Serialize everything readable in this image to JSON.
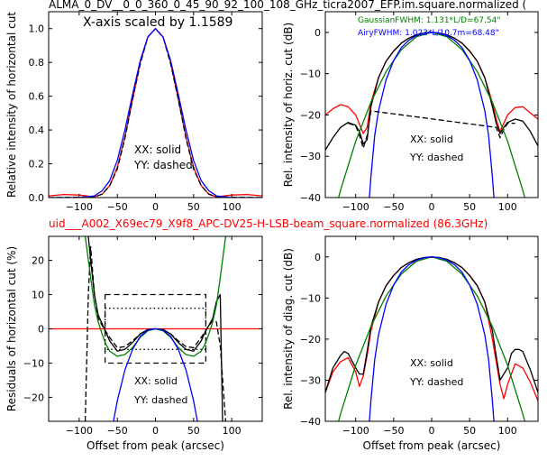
{
  "titles": {
    "top": "ALMA_0_DV__0_0_360_0_45_90_92_100_108_GHz_ticra2007_EFP.im.square.normalized (",
    "middle": "uid___A002_X69ec79_X9f8_APC-DV25-H-LSB-beam_square.normalized (86.3GHz)",
    "middle_color": "#ff0000"
  },
  "colors": {
    "black": "#000000",
    "red": "#ff0000",
    "green": "#008000",
    "blue": "#0000ff"
  },
  "chart_data": [
    {
      "type": "line",
      "panel": "top-left",
      "ylabel": "Relative intensity of horizontal cut",
      "xlabel": "",
      "xlim": [
        -140,
        140
      ],
      "ylim": [
        0,
        1.1
      ],
      "xticks": [
        -100,
        -50,
        0,
        50,
        100
      ],
      "yticks": [
        0.0,
        0.2,
        0.4,
        0.6,
        0.8,
        1.0
      ],
      "xtick_labels": [
        "−100",
        "−50",
        "0",
        "50",
        "100"
      ],
      "ytick_labels": [
        "0.0",
        "0.2",
        "0.4",
        "0.6",
        "0.8",
        "1.0"
      ],
      "annotations": [
        "X-axis scaled by 1.1589",
        "XX: solid",
        "YY: dashed"
      ],
      "series": [
        {
          "style": "red-solid",
          "x": [
            -140,
            -120,
            -100,
            -90,
            -80,
            -70,
            -60,
            -50,
            -40,
            -30,
            -20,
            -10,
            0,
            10,
            20,
            30,
            40,
            50,
            60,
            70,
            80,
            90,
            100,
            120,
            140
          ],
          "y": [
            0.01,
            0.018,
            0.015,
            0.01,
            0.005,
            0.02,
            0.07,
            0.18,
            0.36,
            0.58,
            0.8,
            0.95,
            1.0,
            0.95,
            0.8,
            0.58,
            0.36,
            0.18,
            0.07,
            0.02,
            0.005,
            0.01,
            0.015,
            0.018,
            0.01
          ]
        },
        {
          "style": "black-dashed",
          "x": [
            -140,
            -100,
            -80,
            -70,
            -60,
            -50,
            -40,
            -30,
            -20,
            -10,
            0,
            10,
            20,
            30,
            40,
            50,
            60,
            70,
            80,
            100,
            140
          ],
          "y": [
            0.0,
            0.002,
            0.005,
            0.02,
            0.07,
            0.17,
            0.35,
            0.58,
            0.79,
            0.95,
            1.0,
            0.95,
            0.79,
            0.58,
            0.35,
            0.17,
            0.07,
            0.02,
            0.005,
            0.002,
            0.0
          ]
        },
        {
          "style": "blue-solid",
          "x": [
            -140,
            -100,
            -80,
            -70,
            -60,
            -50,
            -40,
            -30,
            -20,
            -10,
            0,
            10,
            20,
            30,
            40,
            50,
            60,
            70,
            80,
            100,
            140
          ],
          "y": [
            0.0,
            0.0,
            0.01,
            0.04,
            0.1,
            0.22,
            0.4,
            0.61,
            0.81,
            0.95,
            1.0,
            0.95,
            0.81,
            0.61,
            0.4,
            0.22,
            0.1,
            0.04,
            0.01,
            0.0,
            0.0
          ]
        }
      ]
    },
    {
      "type": "line",
      "panel": "top-right",
      "ylabel": "Rel. intensity of horiz. cut (dB)",
      "xlabel": "",
      "xlim": [
        -140,
        140
      ],
      "ylim": [
        -40,
        5
      ],
      "xticks": [
        -100,
        -50,
        0,
        50,
        100
      ],
      "yticks": [
        -40,
        -30,
        -20,
        -10,
        0
      ],
      "xtick_labels": [
        "−100",
        "−50",
        "0",
        "50",
        "100"
      ],
      "ytick_labels": [
        "−40",
        "−30",
        "−20",
        "−10",
        "0"
      ],
      "annotations": [
        "XX: solid",
        "YY: dashed"
      ],
      "legend": [
        {
          "label": "GaussianFWHM: 1.131*L/D=67.54\"",
          "color": "#008000"
        },
        {
          "label": "AiryFWHM: 1.023*L/10.7m=68.48\"",
          "color": "#0000ff"
        }
      ],
      "series": [
        {
          "style": "red-solid",
          "x": [
            -140,
            -130,
            -120,
            -110,
            -100,
            -90,
            -85,
            -80,
            -70,
            -60,
            -50,
            -40,
            -30,
            -20,
            -10,
            0,
            10,
            20,
            30,
            40,
            50,
            60,
            70,
            80,
            85,
            90,
            100,
            110,
            120,
            130,
            140
          ],
          "y": [
            -20,
            -18.5,
            -17.5,
            -18,
            -20,
            -24.5,
            -23,
            -17,
            -11,
            -7,
            -4.5,
            -2.6,
            -1.4,
            -0.6,
            -0.15,
            0,
            -0.15,
            -0.6,
            -1.4,
            -2.6,
            -4.5,
            -7,
            -11,
            -17,
            -21,
            -24,
            -20,
            -18.2,
            -18,
            -19.5,
            -21
          ]
        },
        {
          "style": "black-solid",
          "x": [
            -140,
            -130,
            -120,
            -110,
            -100,
            -95,
            -90,
            -85,
            -80,
            -70,
            -60,
            -50,
            -40,
            -30,
            -20,
            -10,
            0,
            10,
            20,
            30,
            40,
            50,
            60,
            70,
            80,
            85,
            90,
            95,
            100,
            110,
            120,
            130,
            140
          ],
          "y": [
            -28.5,
            -25.5,
            -23,
            -21.8,
            -22.5,
            -24,
            -27,
            -26,
            -18,
            -11,
            -7,
            -4.5,
            -2.6,
            -1.4,
            -0.6,
            -0.15,
            0,
            -0.15,
            -0.6,
            -1.4,
            -2.6,
            -4.5,
            -7,
            -11,
            -18,
            -22,
            -24.5,
            -23,
            -21.8,
            -21,
            -21.5,
            -24,
            -27.5
          ]
        },
        {
          "style": "black-dashed",
          "x": [
            -110,
            -100,
            -95,
            -90,
            -85,
            -80,
            85,
            90,
            95,
            100,
            110
          ],
          "y": [
            -22,
            -22.6,
            -25,
            -28,
            -25,
            -19,
            -23,
            -25.5,
            -23.5,
            -22,
            -22
          ]
        },
        {
          "style": "green-solid",
          "x": [
            -140,
            -120,
            -100,
            -80,
            -60,
            -40,
            -20,
            0,
            20,
            40,
            60,
            80,
            100,
            120,
            140
          ],
          "y": [
            -52,
            -38.2,
            -26.4,
            -16.9,
            -9.5,
            -4.2,
            -1.05,
            0,
            -1.05,
            -4.2,
            -9.5,
            -16.9,
            -26.4,
            -38.2,
            -52
          ]
        },
        {
          "style": "blue-solid",
          "x": [
            -82,
            -80,
            -75,
            -70,
            -60,
            -50,
            -40,
            -30,
            -20,
            -10,
            0,
            10,
            20,
            30,
            40,
            50,
            60,
            70,
            75,
            80,
            82
          ],
          "y": [
            -40,
            -35,
            -25,
            -19,
            -11.5,
            -6.8,
            -3.7,
            -1.9,
            -0.8,
            -0.2,
            0,
            -0.2,
            -0.8,
            -1.9,
            -3.7,
            -6.8,
            -11.5,
            -19,
            -25,
            -35,
            -40
          ]
        }
      ]
    },
    {
      "type": "line",
      "panel": "bottom-left",
      "ylabel": "Residuals of horizontal cut (%)",
      "xlabel": "Offset from peak (arcsec)",
      "xlim": [
        -140,
        140
      ],
      "ylim": [
        -27,
        27
      ],
      "xticks": [
        -100,
        -50,
        0,
        50,
        100
      ],
      "yticks": [
        -20,
        -10,
        0,
        10,
        20
      ],
      "xtick_labels": [
        "−100",
        "−50",
        "0",
        "50",
        "100"
      ],
      "ytick_labels": [
        "−20",
        "−10",
        "0",
        "10",
        "20"
      ],
      "annotations": [
        "XX: solid",
        "YY: dashed"
      ],
      "series": [
        {
          "style": "red-solid",
          "x": [
            -140,
            140
          ],
          "y": [
            0,
            0
          ]
        },
        {
          "style": "black-solid",
          "x": [
            -88,
            -85,
            -80,
            -75,
            -70,
            -65,
            -60,
            -50,
            -40,
            -30,
            -20,
            -10,
            0,
            10,
            20,
            30,
            40,
            50,
            60,
            65,
            70,
            75,
            80,
            85,
            88
          ],
          "y": [
            27,
            20,
            10,
            4,
            1.5,
            -1,
            -3.5,
            -6.5,
            -6,
            -4,
            -1.5,
            -0.2,
            0,
            -0.2,
            -1.5,
            -4,
            -6,
            -6.5,
            -3.5,
            -1,
            1,
            3,
            8,
            10,
            -27
          ]
        },
        {
          "style": "black-dashed",
          "x": [
            -92,
            -88,
            -85,
            -80,
            -75,
            -70,
            -60,
            -50,
            -40,
            -30,
            -20,
            -10,
            0,
            10,
            20,
            30,
            40,
            50,
            60,
            70,
            75,
            80,
            85,
            92
          ],
          "y": [
            -27,
            10,
            24,
            10,
            3,
            1,
            -2.5,
            -5.5,
            -5.2,
            -3.5,
            -1.5,
            -0.2,
            0,
            -0.2,
            -1.5,
            -3.5,
            -5.2,
            -5.5,
            -2.5,
            1,
            2.3,
            2,
            -5,
            -27
          ]
        },
        {
          "style": "black-dashed-box",
          "x": [
            -66,
            66,
            66,
            -66,
            -66
          ],
          "y": [
            10,
            10,
            -10,
            -10,
            10
          ]
        },
        {
          "style": "black-dotted-box",
          "x": [
            -66,
            66,
            66,
            -66,
            -66
          ],
          "y": [
            6,
            6,
            -6,
            -6,
            6
          ]
        },
        {
          "style": "green-solid",
          "x": [
            -92,
            -85,
            -80,
            -75,
            -70,
            -65,
            -60,
            -50,
            -40,
            -30,
            -20,
            -10,
            0,
            10,
            20,
            30,
            40,
            50,
            60,
            65,
            70,
            75,
            80,
            85,
            92
          ],
          "y": [
            27,
            15,
            7,
            2,
            -1.5,
            -4.5,
            -6.5,
            -8,
            -7.5,
            -5.5,
            -2.5,
            -0.6,
            0,
            -0.6,
            -2.5,
            -5.5,
            -7.5,
            -8,
            -6.5,
            -4.5,
            -1.5,
            2,
            7,
            15,
            27
          ]
        },
        {
          "style": "blue-solid",
          "x": [
            -55,
            -50,
            -40,
            -30,
            -20,
            -10,
            0,
            10,
            20,
            30,
            40,
            50,
            55
          ],
          "y": [
            -27,
            -21,
            -12,
            -6,
            -2.2,
            -0.4,
            0,
            -0.4,
            -2.2,
            -6,
            -12,
            -21,
            -27
          ]
        }
      ]
    },
    {
      "type": "line",
      "panel": "bottom-right",
      "ylabel": "Rel. intensity of diag. cut (dB)",
      "xlabel": "Offset from peak (arcsec)",
      "xlim": [
        -140,
        140
      ],
      "ylim": [
        -40,
        5
      ],
      "xticks": [
        -100,
        -50,
        0,
        50,
        100
      ],
      "yticks": [
        -40,
        -30,
        -20,
        -10,
        0
      ],
      "xtick_labels": [
        "−100",
        "−50",
        "0",
        "50",
        "100"
      ],
      "ytick_labels": [
        "−40",
        "−30",
        "−20",
        "−10",
        "0"
      ],
      "annotations": [
        "XX: solid",
        "YY: dashed"
      ],
      "series": [
        {
          "style": "red-solid",
          "x": [
            -140,
            -130,
            -120,
            -110,
            -100,
            -95,
            -90,
            -85,
            -80,
            -70,
            -60,
            -50,
            -40,
            -30,
            -20,
            -10,
            0,
            10,
            20,
            30,
            40,
            50,
            60,
            70,
            80,
            90,
            95,
            100,
            110,
            120,
            130,
            140
          ],
          "y": [
            -33,
            -28,
            -25.5,
            -24.5,
            -28,
            -31.5,
            -29,
            -24,
            -18,
            -11,
            -7,
            -4.5,
            -2.6,
            -1.4,
            -0.6,
            -0.15,
            0,
            -0.15,
            -0.6,
            -1.4,
            -2.6,
            -4.5,
            -7,
            -11,
            -20,
            -31,
            -34.5,
            -31,
            -26,
            -27,
            -30.5,
            -35
          ]
        },
        {
          "style": "black-solid",
          "x": [
            -140,
            -130,
            -120,
            -115,
            -110,
            -100,
            -95,
            -90,
            -85,
            -80,
            -70,
            -60,
            -50,
            -40,
            -30,
            -20,
            -10,
            0,
            10,
            20,
            30,
            40,
            50,
            60,
            70,
            80,
            85,
            90,
            100,
            105,
            110,
            115,
            120,
            130,
            140
          ],
          "y": [
            -33,
            -27,
            -24,
            -23,
            -23.5,
            -27,
            -28.5,
            -28.5,
            -23,
            -17,
            -11,
            -7,
            -4.5,
            -2.6,
            -1.4,
            -0.6,
            -0.15,
            0,
            -0.15,
            -0.6,
            -1.4,
            -2.6,
            -4.5,
            -7,
            -11,
            -18,
            -24,
            -30,
            -27,
            -23.5,
            -22.5,
            -22.5,
            -23,
            -27.5,
            -33
          ]
        },
        {
          "style": "green-solid",
          "x": [
            -140,
            -120,
            -100,
            -80,
            -60,
            -40,
            -20,
            0,
            20,
            40,
            60,
            80,
            100,
            120,
            140
          ],
          "y": [
            -52,
            -38.2,
            -26.4,
            -16.9,
            -9.5,
            -4.2,
            -1.05,
            0,
            -1.05,
            -4.2,
            -9.5,
            -16.9,
            -26.4,
            -38.2,
            -52
          ]
        },
        {
          "style": "blue-solid",
          "x": [
            -82,
            -80,
            -75,
            -70,
            -60,
            -50,
            -40,
            -30,
            -20,
            -10,
            0,
            10,
            20,
            30,
            40,
            50,
            60,
            70,
            75,
            80,
            82
          ],
          "y": [
            -40,
            -35,
            -25,
            -19,
            -11.5,
            -6.8,
            -3.7,
            -1.9,
            -0.8,
            -0.2,
            0,
            -0.2,
            -0.8,
            -1.9,
            -3.7,
            -6.8,
            -11.5,
            -19,
            -25,
            -35,
            -40
          ]
        }
      ]
    }
  ]
}
